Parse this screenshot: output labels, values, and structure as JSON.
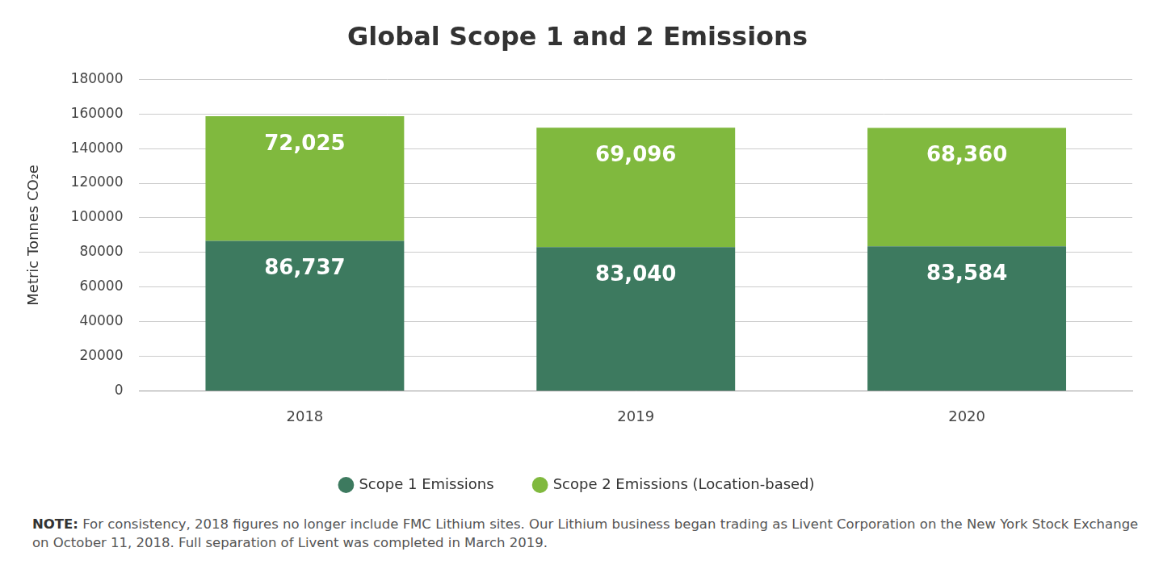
{
  "chart_data": {
    "type": "bar",
    "title": "Global Scope 1 and 2 Emissions",
    "y_label": "Metric Tonnes CO₂e",
    "categories": [
      "2018",
      "2019",
      "2020"
    ],
    "series": [
      {
        "name": "Scope 1 Emissions",
        "color": "#3d7a5f",
        "values": [
          86737,
          83040,
          83584
        ],
        "value_labels": [
          "86,737",
          "83,040",
          "83,584"
        ]
      },
      {
        "name": "Scope 2 Emissions (Location-based)",
        "color": "#80b93e",
        "values": [
          72025,
          69096,
          68360
        ],
        "value_labels": [
          "72,025",
          "69,096",
          "68,360"
        ]
      }
    ],
    "ylim": [
      0,
      180000
    ],
    "yticks": [
      0,
      20000,
      40000,
      60000,
      80000,
      100000,
      120000,
      140000,
      160000,
      180000
    ],
    "grid": true,
    "stacked": true,
    "data_labels": true,
    "legend": "bottom",
    "note": {
      "label": "NOTE:",
      "text": "For consistency, 2018 figures no longer include FMC Lithium sites. Our Lithium business began trading as Livent Corporation on the New York Stock Exchange on October 11, 2018. Full separation of Livent was completed in March 2019."
    }
  }
}
